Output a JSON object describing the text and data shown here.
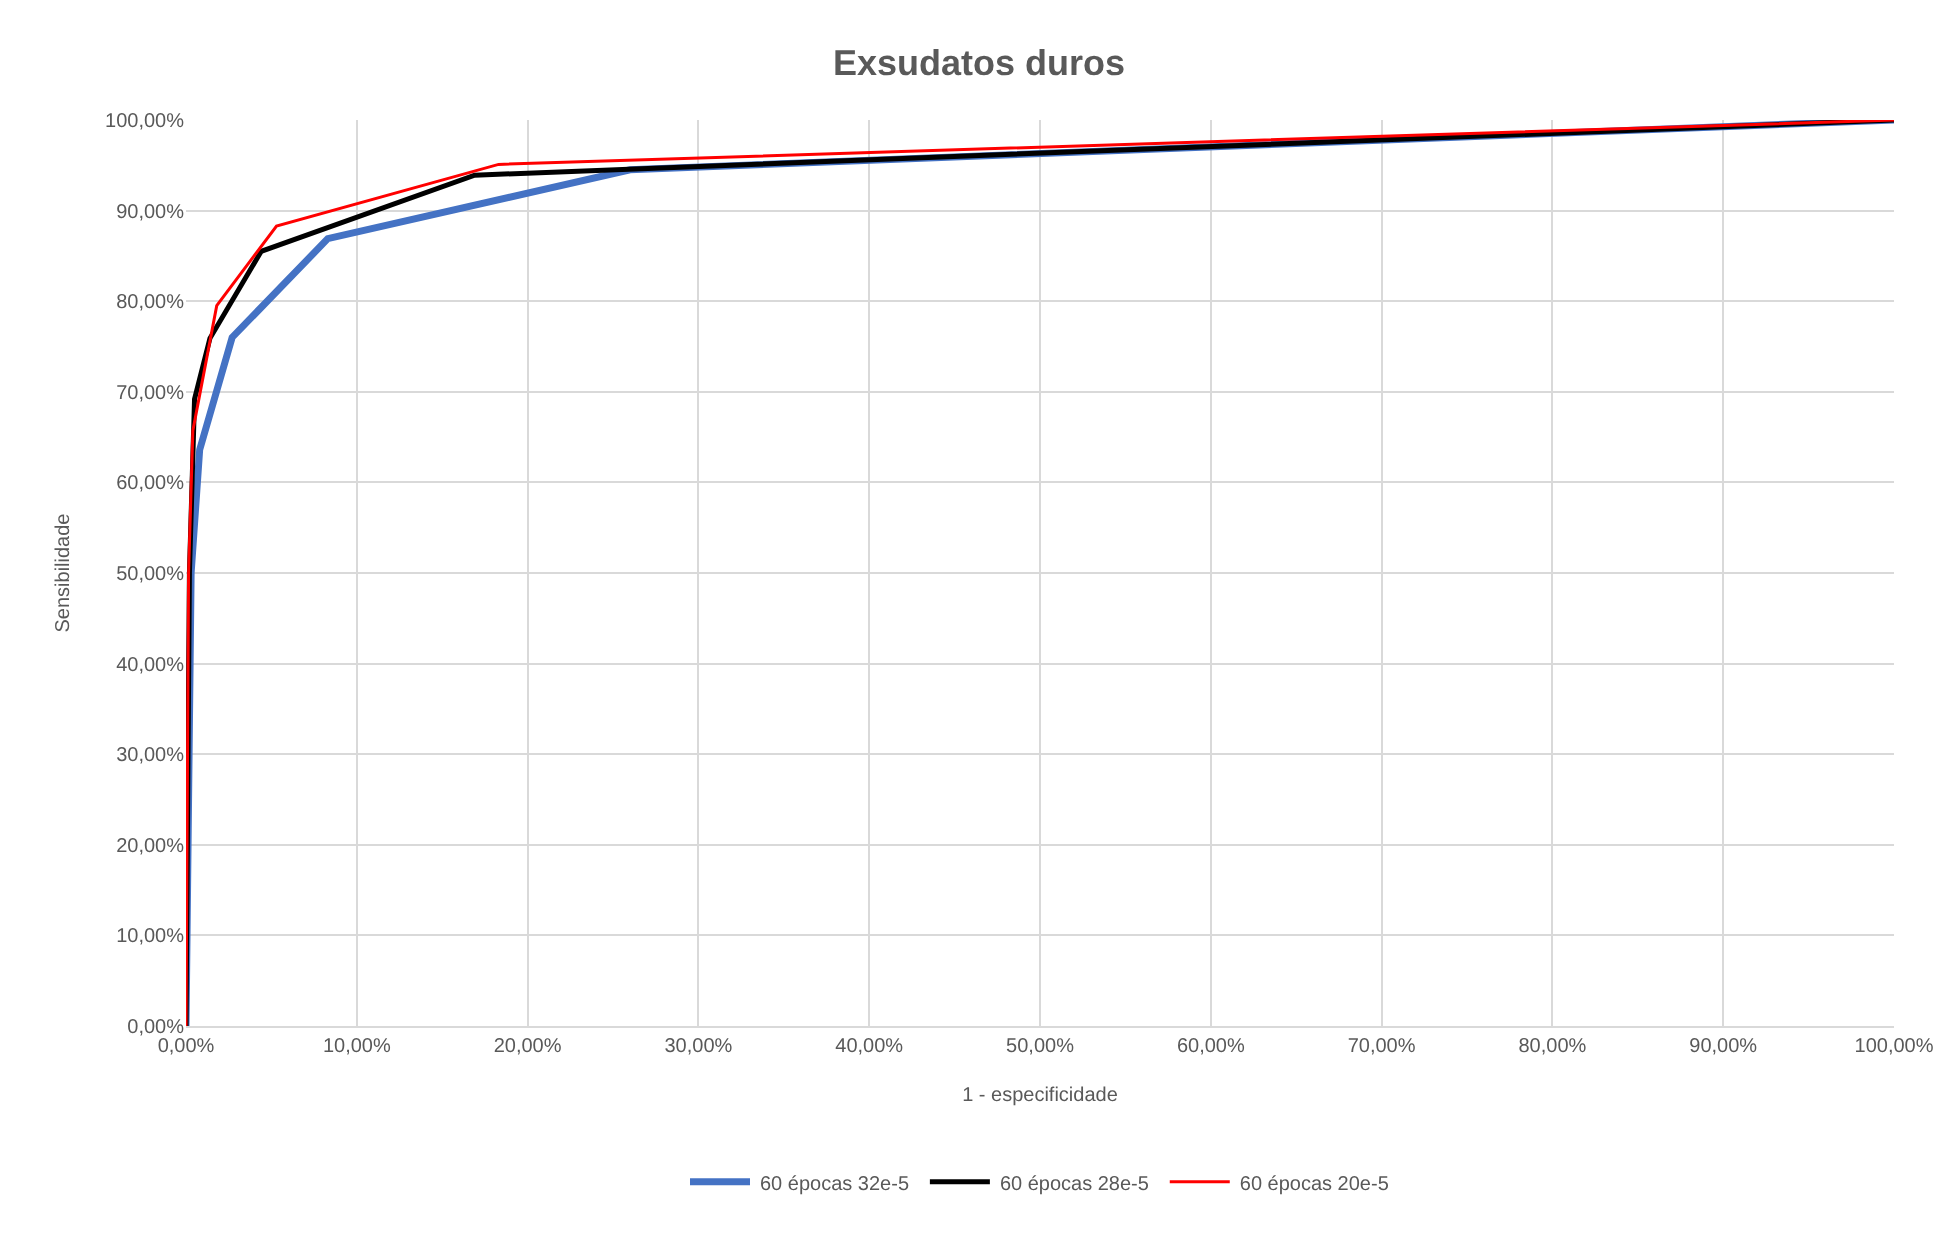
{
  "chart_data": {
    "type": "line",
    "title": "Exsudatos duros",
    "xlabel": "1 - especificidade",
    "ylabel": "Sensibilidade",
    "xlim": [
      0,
      100
    ],
    "ylim": [
      0,
      100
    ],
    "xticks": [
      {
        "value": 0,
        "label": "0,00%"
      },
      {
        "value": 10,
        "label": "10,00%"
      },
      {
        "value": 20,
        "label": "20,00%"
      },
      {
        "value": 30,
        "label": "30,00%"
      },
      {
        "value": 40,
        "label": "40,00%"
      },
      {
        "value": 50,
        "label": "50,00%"
      },
      {
        "value": 60,
        "label": "60,00%"
      },
      {
        "value": 70,
        "label": "70,00%"
      },
      {
        "value": 80,
        "label": "80,00%"
      },
      {
        "value": 90,
        "label": "90,00%"
      },
      {
        "value": 100,
        "label": "100,00%"
      }
    ],
    "yticks": [
      {
        "value": 0,
        "label": "0,00%"
      },
      {
        "value": 10,
        "label": "10,00%"
      },
      {
        "value": 20,
        "label": "20,00%"
      },
      {
        "value": 30,
        "label": "30,00%"
      },
      {
        "value": 40,
        "label": "40,00%"
      },
      {
        "value": 50,
        "label": "50,00%"
      },
      {
        "value": 60,
        "label": "60,00%"
      },
      {
        "value": 70,
        "label": "70,00%"
      },
      {
        "value": 80,
        "label": "80,00%"
      },
      {
        "value": 90,
        "label": "90,00%"
      },
      {
        "value": 100,
        "label": "100,00%"
      }
    ],
    "grid": true,
    "legend": "bottom",
    "marker": "none",
    "line_style": "solid",
    "series": [
      {
        "name": "60 épocas 32e-5",
        "color": "#4472c4",
        "x": [
          0,
          0.3,
          0.8,
          2.7,
          8.3,
          26,
          100
        ],
        "values": [
          0,
          50,
          63.6,
          76,
          86.9,
          94.5,
          100
        ]
      },
      {
        "name": "60 épocas 28e-5",
        "color": "#000000",
        "x": [
          0,
          0.2,
          0.5,
          1.4,
          4.4,
          16.9,
          26.3,
          100
        ],
        "values": [
          0,
          50,
          69.2,
          75.9,
          85.5,
          93.9,
          94.6,
          100
        ]
      },
      {
        "name": "60 épocas 20e-5",
        "color": "#ff0000",
        "x": [
          0,
          0.15,
          0.4,
          1.8,
          5.3,
          18.3,
          100
        ],
        "values": [
          0,
          50,
          65.7,
          79.5,
          88.3,
          95.1,
          100
        ]
      }
    ]
  }
}
